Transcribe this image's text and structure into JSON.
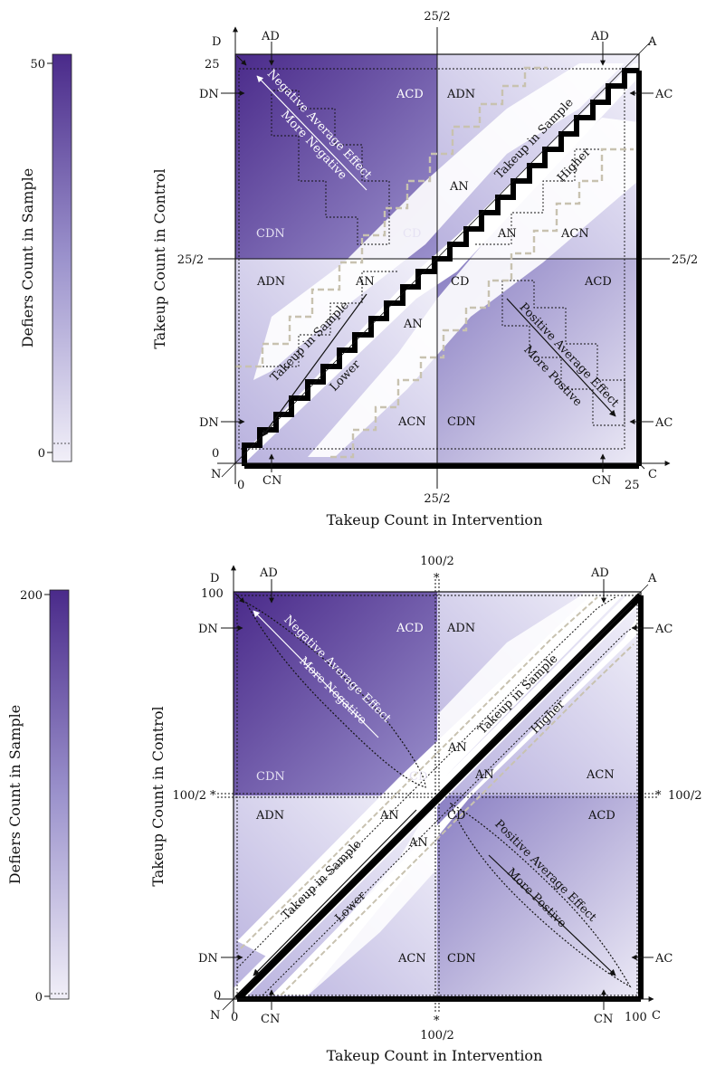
{
  "colors": {
    "defier_dark": "#4a2a8a",
    "defier_mid": "#8c82c4",
    "defier_light": "#ecebf6",
    "identified_set_line": "#c8c2b0",
    "frontier_line": "#000000"
  },
  "chart_data": [
    {
      "type": "heatmap",
      "n": 25,
      "half_label": "25/2",
      "x_label": "Takeup Count in Intervention",
      "y_label": "Takeup Count in Control",
      "tick_0": "0",
      "tick_n": "25",
      "colorbar": {
        "label": "Defiers Count in Sample",
        "min": 0,
        "max": 50,
        "min_label": "0",
        "max_label": "50"
      },
      "corners": {
        "D": "D",
        "A": "A",
        "N": "N",
        "C": "C"
      },
      "edge_labels": {
        "AD": "AD",
        "DN": "DN",
        "AC": "AC",
        "CN": "CN"
      },
      "region_labels": {
        "ACD": "ACD",
        "ADN": "ADN",
        "CDN": "CDN",
        "CD": "CD",
        "AN": "AN",
        "ACN": "ACN"
      },
      "annotations": {
        "neg_line1": "Negative Average Effect",
        "neg_line2": "More Negative",
        "pos_line1": "Positive Average Effect",
        "pos_line2": "More Postive",
        "takeup_label": "Takeup in Sample",
        "higher": "Higher",
        "lower": "Lower"
      }
    },
    {
      "type": "heatmap",
      "n": 100,
      "half_label": "100/2",
      "x_label": "Takeup Count in Intervention",
      "y_label": "Takeup Count in Control",
      "tick_0": "0",
      "tick_n": "100",
      "colorbar": {
        "label": "Defiers Count in Sample",
        "min": 0,
        "max": 200,
        "min_label": "0",
        "max_label": "200"
      },
      "corners": {
        "D": "D",
        "A": "A",
        "N": "N",
        "C": "C"
      },
      "edge_labels": {
        "AD": "AD",
        "DN": "DN",
        "AC": "AC",
        "CN": "CN"
      },
      "region_labels": {
        "ACD": "ACD",
        "ADN": "ADN",
        "CDN": "CDN",
        "CD": "CD",
        "AN": "AN",
        "ACN": "ACN"
      },
      "annotations": {
        "neg_line1": "Negative Average Effect",
        "neg_line2": "More Negative",
        "pos_line1": "Positive Average Effect",
        "pos_line2": "More Postive",
        "takeup_label": "Takeup in Sample",
        "higher": "Higher",
        "lower": "Lower"
      }
    }
  ]
}
